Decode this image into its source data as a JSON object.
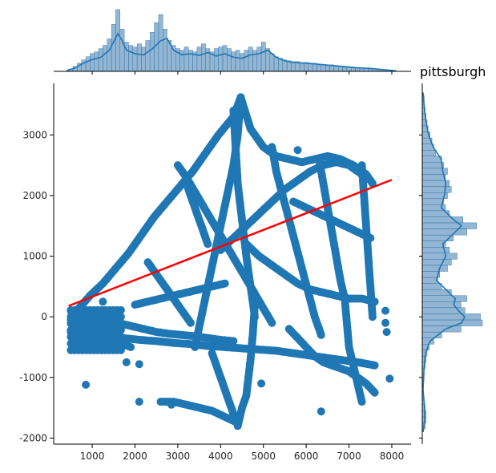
{
  "chart_data": {
    "type": "scatter",
    "title": "pittsburgh",
    "xlabel": "",
    "ylabel": "",
    "xlim": [
      100,
      8450
    ],
    "ylim": [
      -2100,
      3850
    ],
    "x_ticks": [
      1000,
      2000,
      3000,
      4000,
      5000,
      6000,
      7000,
      8000
    ],
    "y_ticks": [
      -2000,
      -1000,
      0,
      1000,
      2000,
      3000
    ],
    "grid": false,
    "legend": "none",
    "colors": {
      "points": "#1f77b4",
      "regression": "#ff0000",
      "hist": "#6d9ec4",
      "kde": "#1f77b4"
    },
    "regression_line": {
      "x": [
        450,
        8000
      ],
      "y": [
        180,
        2260
      ]
    },
    "point_paths": [
      {
        "x": [
          4470,
          4300,
          3950,
          3650,
          3350,
          3050,
          2750,
          2450,
          2150,
          1850,
          1550,
          1250,
          950,
          700,
          500
        ],
        "y": [
          3620,
          3300,
          3000,
          2700,
          2400,
          2150,
          1900,
          1650,
          1350,
          1050,
          800,
          550,
          350,
          150,
          -50
        ]
      },
      {
        "x": [
          4470,
          4700,
          5000,
          5300,
          5600,
          5900,
          6200,
          6500,
          6800,
          7100,
          7400,
          7550
        ],
        "y": [
          3620,
          3100,
          2800,
          2650,
          2600,
          2550,
          2600,
          2650,
          2600,
          2500,
          2350,
          2200
        ]
      },
      {
        "x": [
          4470,
          4400,
          4300,
          4150,
          4000,
          3850,
          3700,
          3550,
          3400
        ],
        "y": [
          3620,
          3000,
          2500,
          2000,
          1500,
          1000,
          500,
          0,
          -500
        ]
      },
      {
        "x": [
          4000,
          4300,
          4600,
          4900,
          5200,
          5500,
          5800,
          6100,
          6400,
          6700,
          7000,
          7300
        ],
        "y": [
          1100,
          1300,
          1500,
          1700,
          1900,
          2100,
          2250,
          2400,
          2500,
          2550,
          2500,
          2350
        ]
      },
      {
        "x": [
          3000,
          3200,
          3450,
          3700,
          3950,
          4200,
          4450,
          4700,
          4950,
          5200
        ],
        "y": [
          2500,
          2300,
          2000,
          1700,
          1400,
          1100,
          800,
          500,
          200,
          -100
        ]
      },
      {
        "x": [
          5200,
          5300,
          5450,
          5600,
          5750,
          5900,
          6050,
          6200,
          6350
        ],
        "y": [
          2800,
          2400,
          2000,
          1600,
          1200,
          800,
          400,
          0,
          -300
        ]
      },
      {
        "x": [
          4300,
          4350,
          4400,
          4500,
          4600,
          4700,
          4800
        ],
        "y": [
          3400,
          2800,
          2200,
          1600,
          1000,
          500,
          0
        ]
      },
      {
        "x": [
          7300,
          7350,
          7400,
          7450,
          7500,
          7550
        ],
        "y": [
          2500,
          2000,
          1500,
          1000,
          500,
          0
        ]
      },
      {
        "x": [
          4600,
          4900,
          5200,
          5500,
          5800,
          6100,
          6400,
          6700,
          7000,
          7300,
          7600
        ],
        "y": [
          1200,
          1000,
          850,
          700,
          550,
          450,
          400,
          350,
          300,
          300,
          250
        ]
      },
      {
        "x": [
          500,
          900,
          1300,
          1700,
          2100,
          2500,
          2900,
          3300,
          3700,
          4100,
          4500,
          4900,
          5300,
          5700,
          6100,
          6500,
          6900,
          7300,
          7600
        ],
        "y": [
          -250,
          -300,
          -320,
          -350,
          -380,
          -400,
          -430,
          -450,
          -480,
          -500,
          -520,
          -540,
          -560,
          -600,
          -640,
          -680,
          -720,
          -760,
          -800
        ]
      },
      {
        "x": [
          500,
          700,
          900,
          1100,
          1300,
          1500,
          1700,
          1900
        ],
        "y": [
          100,
          -50,
          -150,
          -250,
          -350,
          -400,
          -450,
          -500
        ]
      },
      {
        "x": [
          1600,
          1900,
          2200,
          2500,
          2800,
          3100,
          3400,
          3700,
          4000,
          4300
        ],
        "y": [
          -100,
          -150,
          -200,
          -250,
          -280,
          -300,
          -320,
          -350,
          -380,
          -400
        ]
      },
      {
        "x": [
          2000,
          2300,
          2600,
          2900,
          3200,
          3500,
          3800,
          4100
        ],
        "y": [
          200,
          250,
          300,
          350,
          400,
          450,
          500,
          550
        ]
      },
      {
        "x": [
          4800,
          4750,
          4700,
          4650,
          4600,
          4500,
          4450,
          4400
        ],
        "y": [
          200,
          -300,
          -700,
          -1000,
          -1300,
          -1500,
          -1650,
          -1800
        ]
      },
      {
        "x": [
          3800,
          3900,
          4000,
          4100,
          4200,
          4300,
          4400
        ],
        "y": [
          -600,
          -800,
          -1000,
          -1200,
          -1400,
          -1600,
          -1750
        ]
      },
      {
        "x": [
          2600,
          2900,
          3200,
          3500,
          3800,
          4100,
          4400
        ],
        "y": [
          -1400,
          -1400,
          -1450,
          -1500,
          -1550,
          -1650,
          -1750
        ]
      },
      {
        "x": [
          5600,
          5800,
          6000,
          6200,
          6400,
          6600,
          6800,
          7000,
          7200,
          7400,
          7600
        ],
        "y": [
          -200,
          -350,
          -500,
          -650,
          -750,
          -800,
          -850,
          -900,
          -1000,
          -1100,
          -1250
        ]
      },
      {
        "x": [
          6900,
          6950,
          7000,
          7100,
          7200,
          7300
        ],
        "y": [
          300,
          -100,
          -500,
          -800,
          -1100,
          -1400
        ]
      },
      {
        "x": [
          2300,
          2500,
          2700,
          2900,
          3100,
          3300
        ],
        "y": [
          900,
          700,
          500,
          300,
          100,
          -100
        ]
      },
      {
        "x": [
          5700,
          6000,
          6300,
          6600,
          6900,
          7200,
          7500
        ],
        "y": [
          1900,
          1800,
          1700,
          1600,
          1500,
          1400,
          1300
        ]
      },
      {
        "x": [
          3200,
          3300,
          3400,
          3500,
          3600,
          3700
        ],
        "y": [
          2200,
          2000,
          1800,
          1600,
          1400,
          1200
        ]
      },
      {
        "x": [
          6300,
          6400,
          6500,
          6600,
          6700,
          6800,
          6900
        ],
        "y": [
          2600,
          2200,
          1800,
          1400,
          1000,
          600,
          300
        ]
      }
    ],
    "isolated_points": [
      {
        "x": 850,
        "y": -1120
      },
      {
        "x": 1800,
        "y": -750
      },
      {
        "x": 2100,
        "y": -780
      },
      {
        "x": 2100,
        "y": -1400
      },
      {
        "x": 6350,
        "y": -1560
      },
      {
        "x": 7950,
        "y": -1020
      },
      {
        "x": 7880,
        "y": -250
      },
      {
        "x": 7850,
        "y": -100
      },
      {
        "x": 7850,
        "y": 100
      },
      {
        "x": 1250,
        "y": 250
      },
      {
        "x": 1050,
        "y": 60
      },
      {
        "x": 5800,
        "y": 2750
      },
      {
        "x": 2850,
        "y": -1450
      },
      {
        "x": 4950,
        "y": -1100
      }
    ],
    "x_marginal_hist": {
      "bins": [
        500,
        600,
        700,
        800,
        900,
        1000,
        1100,
        1200,
        1300,
        1400,
        1500,
        1600,
        1700,
        1800,
        1900,
        2000,
        2100,
        2200,
        2300,
        2400,
        2500,
        2600,
        2700,
        2800,
        2900,
        3000,
        3100,
        3200,
        3300,
        3400,
        3500,
        3600,
        3700,
        3800,
        3900,
        4000,
        4100,
        4200,
        4300,
        4400,
        4500,
        4600,
        4700,
        4800,
        4900,
        5000,
        5100,
        5200,
        5300,
        5400,
        5500,
        5600,
        5700,
        5800,
        5900,
        6000,
        6100,
        6200,
        6300,
        6400,
        6500,
        6600,
        6700,
        6800,
        6900,
        7000,
        7100,
        7200,
        7300,
        7400,
        7500,
        7600,
        7700,
        7800,
        7900,
        8000
      ],
      "counts": [
        3,
        6,
        10,
        14,
        18,
        22,
        24,
        28,
        32,
        40,
        58,
        76,
        52,
        36,
        32,
        30,
        34,
        30,
        38,
        48,
        60,
        70,
        52,
        38,
        32,
        28,
        26,
        30,
        26,
        24,
        30,
        34,
        28,
        24,
        28,
        30,
        32,
        28,
        24,
        26,
        22,
        26,
        30,
        26,
        30,
        36,
        28,
        22,
        18,
        16,
        14,
        13,
        12,
        12,
        10,
        11,
        9,
        10,
        8,
        8,
        7,
        8,
        6,
        6,
        5,
        5,
        4,
        4,
        3,
        4,
        3,
        2,
        2,
        1,
        1,
        1
      ]
    },
    "y_marginal_hist": {
      "bins": [
        -1800,
        -1700,
        -1600,
        -1500,
        -1400,
        -1300,
        -1200,
        -1100,
        -1000,
        -900,
        -800,
        -700,
        -600,
        -500,
        -400,
        -300,
        -200,
        -100,
        0,
        100,
        200,
        300,
        400,
        500,
        600,
        700,
        800,
        900,
        1000,
        1100,
        1200,
        1300,
        1400,
        1500,
        1600,
        1700,
        1800,
        1900,
        2000,
        2100,
        2200,
        2300,
        2400,
        2500,
        2600,
        2700,
        2800,
        2900,
        3000,
        3100,
        3200,
        3300,
        3400,
        3500,
        3600
      ],
      "counts": [
        3,
        4,
        4,
        3,
        2,
        1,
        1,
        1,
        2,
        2,
        3,
        4,
        5,
        7,
        12,
        20,
        40,
        62,
        60,
        44,
        40,
        46,
        30,
        20,
        16,
        18,
        26,
        30,
        36,
        28,
        24,
        32,
        46,
        56,
        42,
        28,
        24,
        22,
        26,
        30,
        28,
        24,
        26,
        22,
        20,
        14,
        12,
        10,
        8,
        6,
        5,
        4,
        3,
        2,
        2
      ]
    },
    "x_kde": {
      "x": [
        400,
        600,
        800,
        1000,
        1200,
        1400,
        1500,
        1600,
        1700,
        1800,
        2000,
        2200,
        2400,
        2600,
        2750,
        2900,
        3100,
        3300,
        3500,
        3700,
        3900,
        4100,
        4300,
        4500,
        4700,
        4900,
        5100,
        5300,
        5500,
        5700,
        6000,
        6300,
        6600,
        6900,
        7200,
        7500,
        7800,
        8100
      ],
      "density": [
        1,
        6,
        14,
        20,
        24,
        36,
        50,
        64,
        52,
        36,
        30,
        28,
        38,
        52,
        56,
        36,
        28,
        30,
        27,
        32,
        26,
        30,
        24,
        22,
        28,
        30,
        36,
        24,
        18,
        15,
        14,
        12,
        10,
        8,
        6,
        5,
        3,
        1
      ]
    },
    "y_kde": {
      "y": [
        -1900,
        -1700,
        -1500,
        -1200,
        -900,
        -600,
        -400,
        -200,
        -100,
        0,
        100,
        200,
        300,
        400,
        600,
        800,
        1000,
        1200,
        1400,
        1500,
        1600,
        1800,
        2000,
        2200,
        2400,
        2600,
        2800,
        3000,
        3200,
        3400,
        3700
      ],
      "density": [
        1,
        3,
        3,
        1,
        2,
        4,
        10,
        30,
        50,
        54,
        46,
        40,
        42,
        34,
        18,
        22,
        30,
        26,
        42,
        50,
        40,
        24,
        28,
        30,
        26,
        24,
        14,
        8,
        5,
        3,
        1
      ]
    }
  }
}
